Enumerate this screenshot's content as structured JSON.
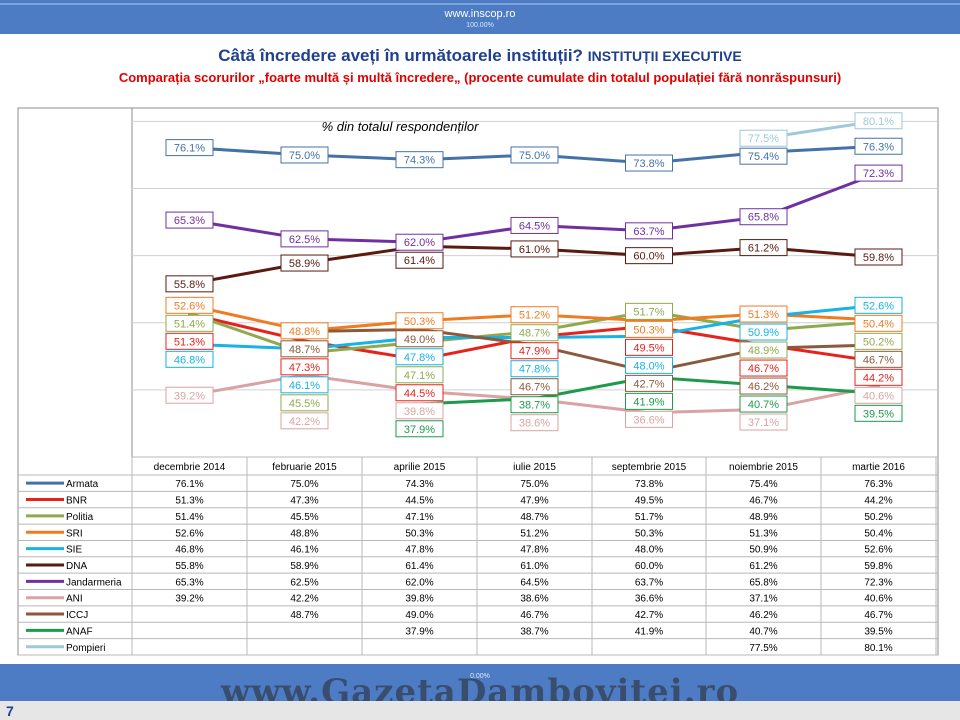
{
  "header": {
    "url": "www.inscop.ro",
    "progress_label": "100.00%"
  },
  "title": {
    "main": "Câtă încredere aveți în următoarele instituții?",
    "sub": "INSTITUȚII EXECUTIVE"
  },
  "subtitle": "Comparația scorurilor „foarte multă și multă încredere„ (procente cumulate din totalul populației fără nonrăspunsuri)",
  "footer": {
    "progress_label": "0.00%",
    "watermark": "www.GazetaDambovitei.ro",
    "page_number": "7"
  },
  "chart_data": {
    "type": "line",
    "annotation": "% din totalul respondenților",
    "categories": [
      "decembrie 2014",
      "februarie 2015",
      "aprilie 2015",
      "iulie 2015",
      "septembrie 2015",
      "noiembrie 2015",
      "martie 2016"
    ],
    "ylim": [
      30,
      82
    ],
    "grid": true,
    "legend_placement": "data table below chart",
    "series": [
      {
        "name": "Armata",
        "color": "#4472a8",
        "values": [
          "76.1%",
          "75.0%",
          "74.3%",
          "75.0%",
          "73.8%",
          "75.4%",
          "76.3%"
        ],
        "v": [
          76.1,
          75.0,
          74.3,
          75.0,
          73.8,
          75.4,
          76.3
        ]
      },
      {
        "name": "BNR",
        "color": "#e8221b",
        "values": [
          "51.3%",
          "47.3%",
          "44.5%",
          "47.9%",
          "49.5%",
          "46.7%",
          "44.2%"
        ],
        "v": [
          51.3,
          47.3,
          44.5,
          47.9,
          49.5,
          46.7,
          44.2
        ]
      },
      {
        "name": "Politia",
        "color": "#8faa4e",
        "values": [
          "51.4%",
          "45.5%",
          "47.1%",
          "48.7%",
          "51.7%",
          "48.9%",
          "50.2%"
        ],
        "v": [
          51.4,
          45.5,
          47.1,
          48.7,
          51.7,
          48.9,
          50.2
        ]
      },
      {
        "name": "SRI",
        "color": "#ee7c23",
        "values": [
          "52.6%",
          "48.8%",
          "50.3%",
          "51.2%",
          "50.3%",
          "51.3%",
          "50.4%"
        ],
        "v": [
          52.6,
          48.8,
          50.3,
          51.2,
          50.3,
          51.3,
          50.4
        ]
      },
      {
        "name": "SIE",
        "color": "#15b3e6",
        "values": [
          "46.8%",
          "46.1%",
          "47.8%",
          "47.8%",
          "48.0%",
          "50.9%",
          "52.6%"
        ],
        "v": [
          46.8,
          46.1,
          47.8,
          47.8,
          48.0,
          50.9,
          52.6
        ]
      },
      {
        "name": "DNA",
        "color": "#5b1a10",
        "values": [
          "55.8%",
          "58.9%",
          "61.4%",
          "61.0%",
          "60.0%",
          "61.2%",
          "59.8%"
        ],
        "v": [
          55.8,
          58.9,
          61.4,
          61.0,
          60.0,
          61.2,
          59.8
        ]
      },
      {
        "name": "Jandarmeria",
        "color": "#7030a0",
        "values": [
          "65.3%",
          "62.5%",
          "62.0%",
          "64.5%",
          "63.7%",
          "65.8%",
          "72.3%"
        ],
        "v": [
          65.3,
          62.5,
          62.0,
          64.5,
          63.7,
          65.8,
          72.3
        ]
      },
      {
        "name": "ANI",
        "color": "#d9a3a3",
        "values": [
          "39.2%",
          "42.2%",
          "39.8%",
          "38.6%",
          "36.6%",
          "37.1%",
          "40.6%"
        ],
        "v": [
          39.2,
          42.2,
          39.8,
          38.6,
          36.6,
          37.1,
          40.6
        ]
      },
      {
        "name": "ICCJ",
        "color": "#8a5a3b",
        "values": [
          "",
          "48.7%",
          "49.0%",
          "46.7%",
          "42.7%",
          "46.2%",
          "46.7%"
        ],
        "v": [
          null,
          48.7,
          49.0,
          46.7,
          42.7,
          46.2,
          46.7
        ]
      },
      {
        "name": "ANAF",
        "color": "#1e9a4c",
        "values": [
          "",
          "",
          "37.9%",
          "38.7%",
          "41.9%",
          "40.7%",
          "39.5%"
        ],
        "v": [
          null,
          null,
          37.9,
          38.7,
          41.9,
          40.7,
          39.5
        ]
      },
      {
        "name": "Pompieri",
        "color": "#9ec8db",
        "values": [
          "",
          "",
          "",
          "",
          "",
          "77.5%",
          "80.1%"
        ],
        "v": [
          null,
          null,
          null,
          null,
          null,
          77.5,
          80.1
        ]
      }
    ]
  }
}
